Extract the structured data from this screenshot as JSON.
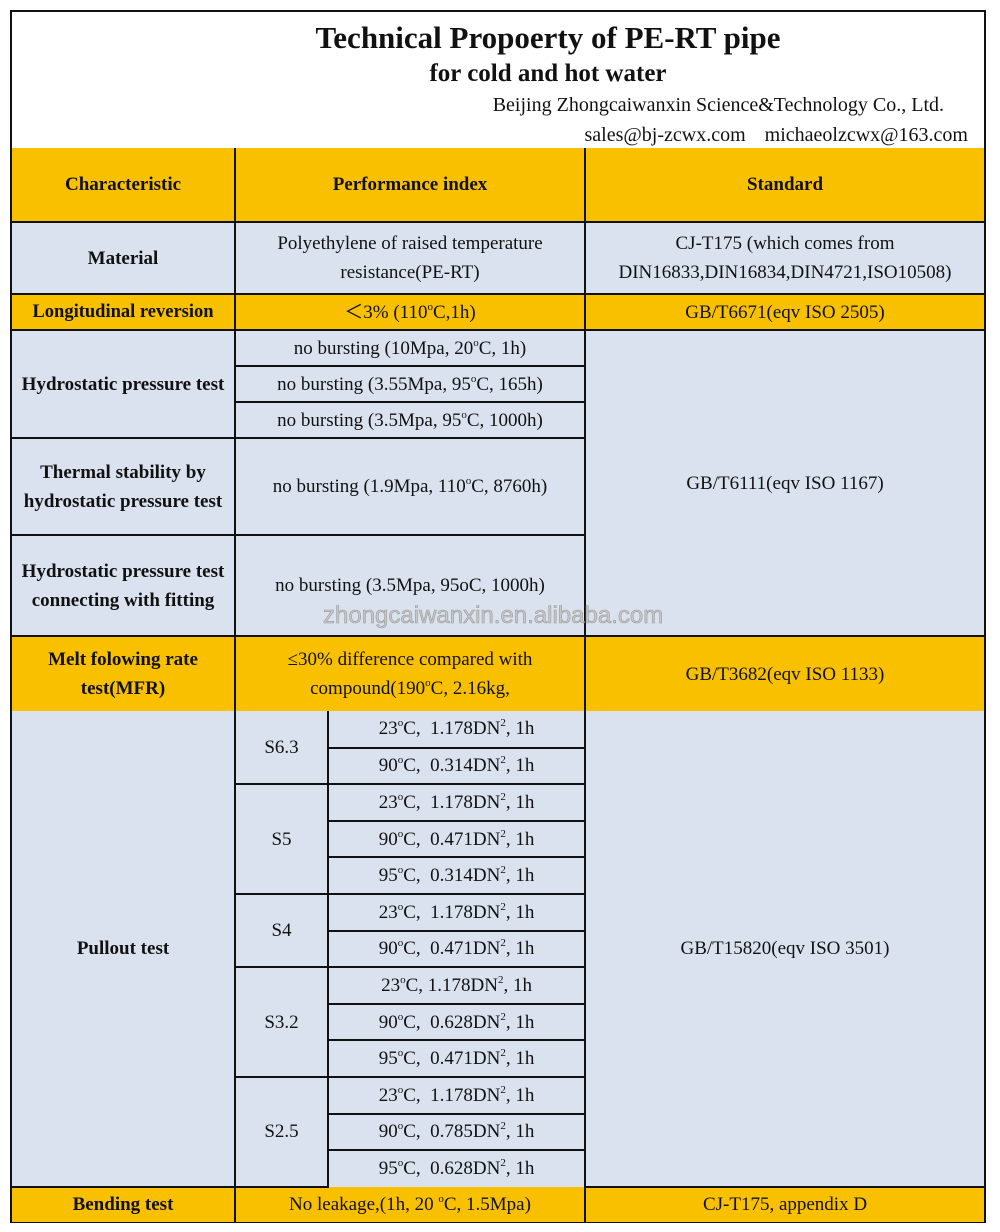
{
  "header": {
    "title": "Technical Propoerty of PE-RT pipe",
    "subtitle": "for cold and hot water",
    "company": "Beijing Zhongcaiwanxin Science&Technology Co., Ltd.",
    "email1": "sales@bj-zcwx.com",
    "email2": "michaeolzcwx@163.com"
  },
  "colors": {
    "highlight_row": "#f9c000",
    "normal_row": "#dbe2ef"
  },
  "table": {
    "columns": [
      "Characteristic",
      "Performance index",
      "Standard"
    ],
    "material": {
      "name": "Material",
      "index": "Polyethylene of raised temperature resistance(PE-RT)",
      "standard": "CJ-T175 (which comes from DIN16833,DIN16834,DIN4721,ISO10508)"
    },
    "longitudinal": {
      "name": "Longitudinal reversion",
      "index": "＜3% (110^oC,1h)",
      "standard": "GB/T6671(eqv ISO 2505)"
    },
    "hydrostatic": {
      "name": "Hydrostatic pressure test",
      "index": [
        "no bursting (10Mpa, 20^oC, 1h)",
        "no bursting (3.55Mpa, 95^oC, 165h)",
        "no bursting (3.5Mpa, 95^oC, 1000h)"
      ]
    },
    "thermal": {
      "name": "Thermal stability by hydrostatic pressure test",
      "index": "no bursting (1.9Mpa, 110^oC, 8760h)"
    },
    "fitting": {
      "name": "Hydrostatic pressure test connecting with fitting",
      "index": "no bursting (3.5Mpa, 95oC, 1000h)"
    },
    "hydro_standard": "GB/T6111(eqv ISO 1167)",
    "melt": {
      "name": "Melt folowing rate test(MFR)",
      "index": "≤30% difference compared with compound(190^oC, 2.16kg,",
      "standard": "GB/T3682(eqv ISO 1133)"
    },
    "pullout": {
      "name": "Pullout test",
      "standard": "GB/T15820(eqv ISO 3501)",
      "groups": [
        {
          "series": "S6.3",
          "rows": [
            "23^oC,  1.178DN^2, 1h",
            "90^oC,  0.314DN^2, 1h"
          ]
        },
        {
          "series": "S5",
          "rows": [
            "23^oC,  1.178DN^2, 1h",
            "90^oC,  0.471DN^2, 1h",
            "95^oC,  0.314DN^2, 1h"
          ]
        },
        {
          "series": "S4",
          "rows": [
            "23^oC,  1.178DN^2, 1h",
            "90^oC,  0.471DN^2, 1h"
          ]
        },
        {
          "series": "S3.2",
          "rows": [
            "23^oC, 1.178DN^2, 1h",
            "90^oC,  0.628DN^2, 1h",
            "95^oC,  0.471DN^2, 1h"
          ]
        },
        {
          "series": "S2.5",
          "rows": [
            "23^oC,  1.178DN^2, 1h",
            "90^oC,  0.785DN^2, 1h",
            "95^oC,  0.628DN^2, 1h"
          ]
        }
      ]
    },
    "bending": {
      "name": "Bending test",
      "index": "No leakage,(1h, 20 ^oC, 1.5Mpa)",
      "standard": "CJ-T175, appendix D"
    }
  },
  "watermark": "zhongcaiwanxin.en.alibaba.com"
}
